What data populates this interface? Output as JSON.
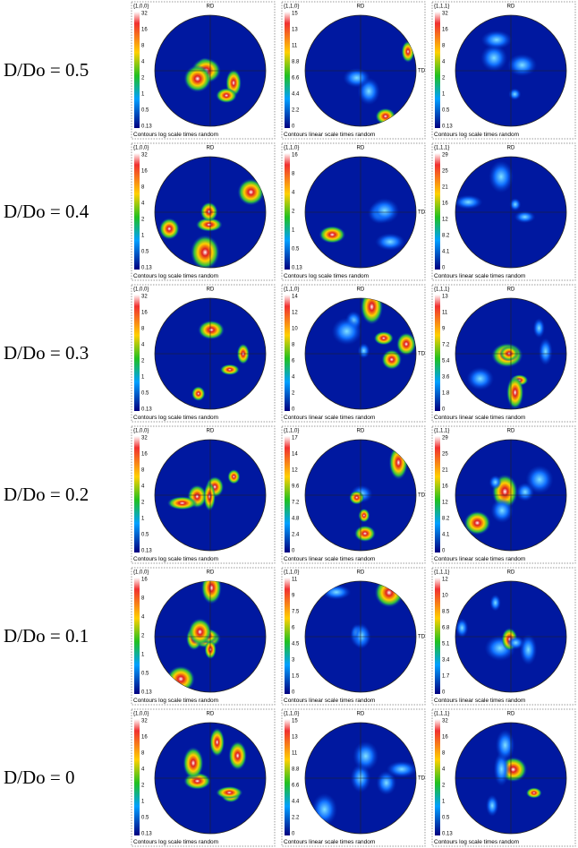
{
  "rows": [
    {
      "label": "D/Do = 0.5",
      "panels": [
        {
          "plane": "{1,0,0}",
          "rd": "RD",
          "scale": [
            32,
            16,
            8,
            4,
            2,
            1,
            0.5,
            0.13
          ],
          "caption": "Contours log scale times random"
        },
        {
          "plane": "{1,1,0}",
          "rd": "RD",
          "td": "TD",
          "scale": [
            15,
            13,
            11,
            8.8,
            6.6,
            4.4,
            2.2,
            0
          ],
          "caption": "Contours linear scale times random"
        },
        {
          "plane": "{1,1,1}",
          "rd": "RD",
          "scale": [
            32,
            16,
            8,
            4,
            2,
            1,
            0.5,
            0.13
          ],
          "caption": "Contours log scale times random"
        }
      ]
    },
    {
      "label": "D/Do = 0.4",
      "panels": [
        {
          "plane": "{1,0,0}",
          "rd": "RD",
          "scale": [
            32,
            16,
            8,
            4,
            2,
            1,
            0.5,
            0.13
          ],
          "caption": "Contours log scale times random"
        },
        {
          "plane": "{1,1,0}",
          "rd": "RD",
          "td": "TD",
          "scale": [
            16,
            8,
            4,
            2,
            1,
            0.5,
            0.13
          ],
          "caption": "Contours log scale times random"
        },
        {
          "plane": "{1,1,1}",
          "rd": "RD",
          "scale": [
            29,
            25,
            21,
            16,
            12,
            8.2,
            4.1,
            0
          ],
          "caption": "Contours linear scale times random"
        }
      ]
    },
    {
      "label": "D/Do = 0.3",
      "panels": [
        {
          "plane": "{1,0,0}",
          "rd": "RD",
          "scale": [
            32,
            16,
            8,
            4,
            2,
            1,
            0.5,
            0.13
          ],
          "caption": "Contours log scale times random"
        },
        {
          "plane": "{1,1,0}",
          "rd": "RD",
          "td": "TD",
          "scale": [
            14,
            12,
            10,
            8,
            6,
            4,
            2,
            0
          ],
          "caption": "Contours linear scale times random"
        },
        {
          "plane": "{1,1,1}",
          "rd": "RD",
          "scale": [
            13,
            11,
            9,
            7.2,
            5.4,
            3.6,
            1.8,
            0
          ],
          "caption": "Contours linear scale times random"
        }
      ]
    },
    {
      "label": "D/Do = 0.2",
      "panels": [
        {
          "plane": "{1,0,0}",
          "rd": "RD",
          "scale": [
            32,
            16,
            8,
            4,
            2,
            1,
            0.5,
            0.13
          ],
          "caption": "Contours log scale times random"
        },
        {
          "plane": "{1,1,0}",
          "rd": "RD",
          "td": "TD",
          "scale": [
            17,
            14,
            12,
            9.6,
            7.2,
            4.8,
            2.4,
            0
          ],
          "caption": "Contours linear scale times random"
        },
        {
          "plane": "{1,1,1}",
          "rd": "RD",
          "scale": [
            29,
            25,
            21,
            16,
            12,
            8.2,
            4.1,
            0
          ],
          "caption": "Contours linear scale times random"
        }
      ]
    },
    {
      "label": "D/Do = 0.1",
      "panels": [
        {
          "plane": "{1,0,0}",
          "rd": "RD",
          "scale": [
            16,
            8,
            4,
            2,
            1,
            0.5,
            0.13
          ],
          "caption": "Contours log scale times random"
        },
        {
          "plane": "{1,1,0}",
          "rd": "RD",
          "td": "TD",
          "scale": [
            11,
            9,
            7.5,
            6,
            4.5,
            3,
            1.5,
            0
          ],
          "caption": "Contours linear scale times random"
        },
        {
          "plane": "{1,1,1}",
          "rd": "RD",
          "scale": [
            12,
            10,
            8.5,
            6.8,
            5.1,
            3.4,
            1.7,
            0
          ],
          "caption": "Contours linear scale times random"
        }
      ]
    },
    {
      "label": "D/Do = 0",
      "panels": [
        {
          "plane": "{1,0,0}",
          "rd": "RD",
          "scale": [
            32,
            16,
            8,
            4,
            2,
            1,
            0.5,
            0.13
          ],
          "caption": "Contours log scale times random"
        },
        {
          "plane": "{1,1,0}",
          "rd": "RD",
          "td": "TD",
          "scale": [
            15,
            13,
            11,
            8.8,
            6.6,
            4.4,
            2.2,
            0
          ],
          "caption": "Contours linear scale times random"
        },
        {
          "plane": "{1,1,1}",
          "rd": "RD",
          "scale": [
            32,
            16,
            8,
            4,
            2,
            1,
            0.5,
            0.13
          ],
          "caption": "Contours log scale times random"
        }
      ]
    }
  ]
}
